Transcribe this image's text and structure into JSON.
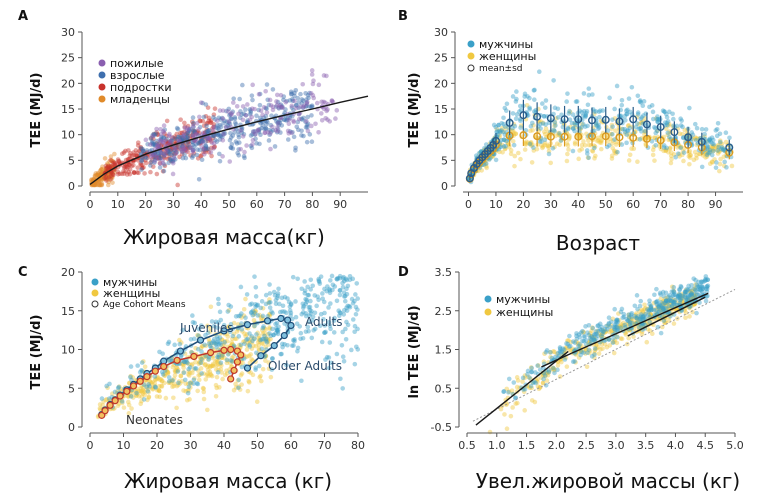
{
  "colors": {
    "elderly": "#8a5fb0",
    "adults": "#3e6fae",
    "adolescents": "#c8322c",
    "infants": "#e08a2a",
    "men": "#3aa0c8",
    "women": "#f0c840",
    "fit_line": "#1a1a1a",
    "mean_men": "#2a5d8a",
    "mean_women": "#d99a20",
    "cohort_women_line": "#c0392b",
    "cohort_men_line": "#1f4e79"
  },
  "chart_data": [
    {
      "panel": "A",
      "type": "scatter",
      "ylabel": "TEE (MJ/d)",
      "xlabel": "Жировая масса(кг)",
      "xlim": [
        0,
        100
      ],
      "ylim": [
        0,
        30
      ],
      "xticks": [
        "0",
        "10",
        "20",
        "30",
        "40",
        "50",
        "60",
        "70",
        "80",
        "90"
      ],
      "yticks": [
        "0",
        "5",
        "10",
        "15",
        "20",
        "25",
        "30"
      ],
      "legend": [
        {
          "label": "пожилые",
          "color_key": "elderly"
        },
        {
          "label": "взрослые",
          "color_key": "adults"
        },
        {
          "label": "подростки",
          "color_key": "adolescents"
        },
        {
          "label": "младенцы",
          "color_key": "infants"
        }
      ],
      "fit_line": {
        "x": [
          0,
          5,
          10,
          20,
          30,
          40,
          50,
          60,
          70,
          80,
          90,
          100
        ],
        "y": [
          0.3,
          2.3,
          3.9,
          6.2,
          8.0,
          9.6,
          11.1,
          12.5,
          13.8,
          15.0,
          16.3,
          17.5
        ]
      }
    },
    {
      "panel": "B",
      "type": "scatter",
      "ylabel": "TEE (MJ/d)",
      "xlabel": "Возраст",
      "xlim": [
        -2,
        100
      ],
      "ylim": [
        0,
        30
      ],
      "xticks": [
        "0",
        "10",
        "20",
        "30",
        "40",
        "50",
        "60",
        "70",
        "80",
        "90"
      ],
      "yticks": [
        "0",
        "5",
        "10",
        "15",
        "20",
        "25",
        "30"
      ],
      "legend": [
        {
          "label": "мужчины",
          "color_key": "men"
        },
        {
          "label": "женщины",
          "color_key": "women"
        },
        {
          "label": "mean±sd",
          "color_key": "fit_line"
        }
      ],
      "series": [
        {
          "name": "мужчины",
          "x": [
            0.5,
            1,
            2,
            3,
            4,
            5,
            6,
            7,
            8,
            9,
            10,
            15,
            20,
            25,
            30,
            35,
            40,
            45,
            50,
            55,
            60,
            65,
            70,
            75,
            80,
            85,
            95
          ],
          "mean": [
            1.5,
            2.5,
            3.5,
            4.3,
            5.0,
            5.6,
            6.2,
            6.8,
            7.4,
            8.0,
            8.8,
            12.3,
            13.8,
            13.5,
            13.2,
            13.0,
            13.0,
            12.8,
            12.9,
            12.6,
            13.0,
            12.0,
            11.5,
            10.5,
            9.5,
            8.6,
            7.5
          ],
          "sd": [
            0.4,
            0.5,
            0.6,
            0.7,
            0.8,
            0.9,
            1.0,
            1.1,
            1.2,
            1.3,
            1.5,
            2.4,
            3.0,
            2.8,
            2.7,
            2.6,
            2.6,
            2.5,
            2.5,
            2.5,
            2.4,
            2.3,
            2.2,
            2.1,
            2.0,
            1.8,
            1.5
          ]
        },
        {
          "name": "женщины",
          "x": [
            0.5,
            1,
            2,
            3,
            4,
            5,
            6,
            7,
            8,
            9,
            10,
            15,
            20,
            25,
            30,
            35,
            40,
            45,
            50,
            55,
            60,
            65,
            70,
            75,
            80,
            85,
            95
          ],
          "mean": [
            1.4,
            2.3,
            3.2,
            4.0,
            4.6,
            5.2,
            5.8,
            6.3,
            6.8,
            7.3,
            8.0,
            9.8,
            9.9,
            9.7,
            9.6,
            9.6,
            9.6,
            9.7,
            9.7,
            9.5,
            9.4,
            9.2,
            8.9,
            8.5,
            8.0,
            7.5,
            6.5
          ],
          "sd": [
            0.4,
            0.5,
            0.6,
            0.6,
            0.7,
            0.8,
            0.9,
            1.0,
            1.0,
            1.1,
            1.3,
            2.0,
            2.1,
            2.0,
            2.0,
            1.9,
            1.9,
            1.9,
            1.9,
            1.9,
            1.8,
            1.8,
            1.7,
            1.7,
            1.6,
            1.5,
            1.3
          ]
        }
      ]
    },
    {
      "panel": "C",
      "type": "scatter",
      "ylabel": "TEE (MJ/d)",
      "xlabel": "Жировая масса (кг)",
      "xlim": [
        0,
        80
      ],
      "ylim": [
        0,
        20
      ],
      "xticks": [
        "0",
        "10",
        "20",
        "30",
        "40",
        "50",
        "60",
        "70",
        "80"
      ],
      "yticks": [
        "0",
        "5",
        "10",
        "15",
        "20"
      ],
      "legend": [
        {
          "label": "мужчины",
          "color_key": "men"
        },
        {
          "label": "женщины",
          "color_key": "women"
        },
        {
          "label": "Age Cohort Means",
          "color_key": "fit_line"
        }
      ],
      "annotations": [
        "Juveniles",
        "Adults",
        "Older Adults",
        "Neonates"
      ],
      "series": [
        {
          "name": "женщины",
          "x": [
            3.5,
            4.5,
            6,
            7.5,
            9,
            11,
            13,
            15,
            17,
            19.5,
            22,
            26,
            31,
            36,
            40,
            42,
            44,
            45,
            44,
            43,
            42
          ],
          "y": [
            1.5,
            2.1,
            2.8,
            3.4,
            4.0,
            4.6,
            5.3,
            5.9,
            6.5,
            7.2,
            7.8,
            8.6,
            9.1,
            9.6,
            9.9,
            10.0,
            9.8,
            9.3,
            8.4,
            7.3,
            6.2
          ]
        },
        {
          "name": "мужчины",
          "x": [
            3.5,
            4.5,
            6,
            7.5,
            9,
            11,
            13,
            15,
            17,
            19.5,
            22,
            27,
            33,
            40,
            47,
            53,
            57,
            59,
            60,
            58,
            55,
            51,
            47
          ],
          "y": [
            1.6,
            2.2,
            2.9,
            3.5,
            4.1,
            4.8,
            5.5,
            6.2,
            6.9,
            7.6,
            8.5,
            9.8,
            11.2,
            12.4,
            13.2,
            13.7,
            14.0,
            13.8,
            13.1,
            11.8,
            10.5,
            9.2,
            7.6
          ]
        }
      ]
    },
    {
      "panel": "D",
      "type": "scatter",
      "ylabel": "ln TEE (MJ/d)",
      "xlabel": "Увел.жировой массы (кг)",
      "xlim": [
        0.5,
        5.0
      ],
      "ylim": [
        -0.5,
        3.5
      ],
      "xticks": [
        "0.5",
        "1.0",
        "1.5",
        "2.0",
        "2.5",
        "3.0",
        "3.5",
        "4.0",
        "4.5",
        "5.0"
      ],
      "yticks": [
        "-0.5",
        "0.5",
        "1.5",
        "2.5",
        "3.5"
      ],
      "legend": [
        {
          "label": "мужчины",
          "color_key": "men"
        },
        {
          "label": "женщины",
          "color_key": "women"
        }
      ],
      "reference_line": {
        "x": [
          0.6,
          5.0
        ],
        "y": [
          -0.35,
          3.05
        ]
      },
      "segments": [
        {
          "x": [
            0.65,
            2.2
          ],
          "y": [
            -0.45,
            1.45
          ]
        },
        {
          "x": [
            1.75,
            2.25
          ],
          "y": [
            1.05,
            1.4
          ]
        },
        {
          "x": [
            2.25,
            4.55
          ],
          "y": [
            1.4,
            2.95
          ]
        },
        {
          "x": [
            3.2,
            4.5
          ],
          "y": [
            1.85,
            2.85
          ]
        }
      ]
    }
  ]
}
